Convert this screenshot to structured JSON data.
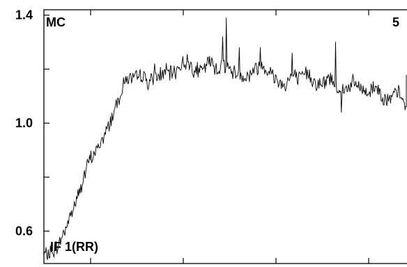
{
  "chart_data": {
    "type": "line",
    "ylim": [
      0.48,
      1.42
    ],
    "y_ticks": [
      {
        "value": 1.4,
        "label": "1.4"
      },
      {
        "value": 1.2,
        "label": ""
      },
      {
        "value": 1.0,
        "label": "1.0"
      },
      {
        "value": 0.8,
        "label": ""
      },
      {
        "value": 0.6,
        "label": "0.6"
      }
    ],
    "x_tick_count": 5,
    "annotations": {
      "top_left": "MC",
      "top_right": "5",
      "bottom_left": "IF 1(RR)"
    },
    "line_color": "#000000",
    "series": [
      {
        "x": [
          0,
          0.02,
          0.04,
          0.06,
          0.08,
          0.1,
          0.12,
          0.14,
          0.16,
          0.18,
          0.2,
          0.22,
          0.24,
          0.26,
          0.28,
          0.3,
          0.32,
          0.34,
          0.36,
          0.38,
          0.4,
          0.42,
          0.44,
          0.46,
          0.48,
          0.5,
          0.52,
          0.54,
          0.56,
          0.58,
          0.6,
          0.62,
          0.64,
          0.66,
          0.68,
          0.7,
          0.72,
          0.74,
          0.76,
          0.78,
          0.8,
          0.82,
          0.84,
          0.86,
          0.88,
          0.9,
          0.92,
          0.94,
          0.96,
          0.98,
          1.0
        ],
        "y": [
          0.51,
          0.52,
          0.55,
          0.62,
          0.69,
          0.77,
          0.86,
          0.9,
          0.95,
          1.02,
          1.1,
          1.17,
          1.16,
          1.18,
          1.15,
          1.17,
          1.19,
          1.18,
          1.21,
          1.23,
          1.2,
          1.19,
          1.23,
          1.2,
          1.22,
          1.19,
          1.18,
          1.17,
          1.2,
          1.22,
          1.19,
          1.16,
          1.14,
          1.18,
          1.16,
          1.19,
          1.15,
          1.14,
          1.17,
          1.13,
          1.12,
          1.15,
          1.13,
          1.11,
          1.14,
          1.1,
          1.08,
          1.12,
          1.06,
          1.13,
          1.16
        ],
        "spikes": [
          {
            "x": 0.485,
            "y": 1.39
          },
          {
            "x": 0.475,
            "y": 1.32
          },
          {
            "x": 0.52,
            "y": 1.28
          },
          {
            "x": 0.575,
            "y": 1.28
          },
          {
            "x": 0.775,
            "y": 1.3
          },
          {
            "x": 0.66,
            "y": 1.26
          },
          {
            "x": 0.08,
            "y": 0.71
          },
          {
            "x": 0.295,
            "y": 1.22
          },
          {
            "x": 0.79,
            "y": 1.04
          }
        ]
      }
    ]
  }
}
